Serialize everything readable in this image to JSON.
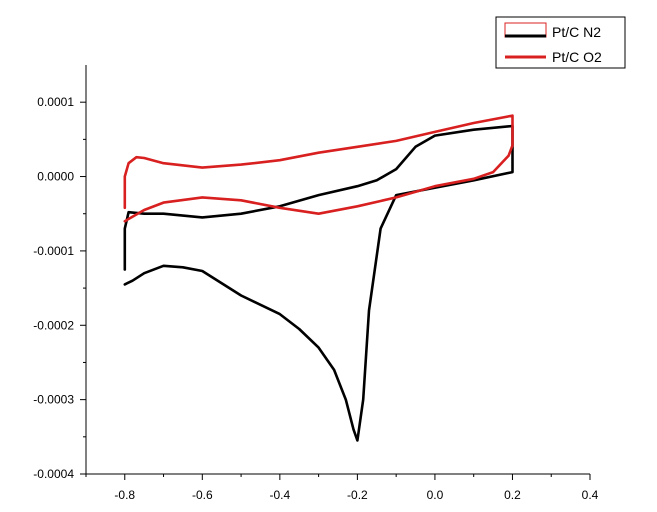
{
  "chart_data": {
    "type": "line",
    "title": "",
    "xlabel": "",
    "ylabel": "",
    "xlim": [
      -0.9,
      0.4
    ],
    "ylim": [
      -0.0004,
      0.00015
    ],
    "x_ticks": [
      -0.8,
      -0.6,
      -0.4,
      -0.2,
      0.0,
      0.2,
      0.4
    ],
    "x_tick_labels": [
      "-0.8",
      "-0.6",
      "-0.4",
      "-0.2",
      "0.0",
      "0.2",
      "0.4"
    ],
    "y_ticks": [
      -0.0004,
      -0.0003,
      -0.0002,
      -0.0001,
      0.0,
      0.0001
    ],
    "y_tick_labels": [
      "-0.0004",
      "-0.0003",
      "-0.0002",
      "-0.0001",
      "0.0000",
      "0.0001"
    ],
    "grid": false,
    "legend": {
      "placement": "top-right",
      "entries": [
        "Pt/C N2",
        "Pt/C O2"
      ]
    },
    "series": [
      {
        "name": "Pt/C N2",
        "color": "#000000",
        "x": [
          -0.8,
          -0.8,
          -0.79,
          -0.75,
          -0.7,
          -0.6,
          -0.5,
          -0.4,
          -0.3,
          -0.2,
          -0.15,
          -0.1,
          -0.05,
          0.0,
          0.1,
          0.2,
          0.2,
          0.1,
          0.0,
          -0.1,
          -0.14,
          -0.17,
          -0.185,
          -0.2,
          -0.21,
          -0.23,
          -0.26,
          -0.3,
          -0.35,
          -0.4,
          -0.5,
          -0.6,
          -0.65,
          -0.7,
          -0.75,
          -0.78,
          -0.8
        ],
        "y": [
          -0.000125,
          -7e-05,
          -4.8e-05,
          -5e-05,
          -5e-05,
          -5.5e-05,
          -5e-05,
          -4e-05,
          -2.5e-05,
          -1.3e-05,
          -5e-06,
          1e-05,
          4e-05,
          5.5e-05,
          6.3e-05,
          6.8e-05,
          6e-06,
          -5e-06,
          -1.5e-05,
          -2.5e-05,
          -7e-05,
          -0.00018,
          -0.0003,
          -0.000355,
          -0.00034,
          -0.0003,
          -0.00026,
          -0.00023,
          -0.000205,
          -0.000185,
          -0.00016,
          -0.000127,
          -0.000122,
          -0.00012,
          -0.00013,
          -0.00014,
          -0.000145
        ]
      },
      {
        "name": "Pt/C O2",
        "color": "#d92020",
        "x": [
          -0.8,
          -0.8,
          -0.79,
          -0.77,
          -0.75,
          -0.7,
          -0.6,
          -0.5,
          -0.4,
          -0.3,
          -0.2,
          -0.1,
          0.0,
          0.1,
          0.2,
          0.2,
          0.19,
          0.15,
          0.1,
          0.0,
          -0.1,
          -0.2,
          -0.3,
          -0.4,
          -0.5,
          -0.6,
          -0.7,
          -0.75,
          -0.8
        ],
        "y": [
          -4.2e-05,
          0.0,
          1.8e-05,
          2.6e-05,
          2.5e-05,
          1.8e-05,
          1.2e-05,
          1.6e-05,
          2.2e-05,
          3.2e-05,
          4e-05,
          4.8e-05,
          6e-05,
          7.2e-05,
          8.2e-05,
          4.2e-05,
          2.8e-05,
          6e-06,
          -3e-06,
          -1.3e-05,
          -2.8e-05,
          -4e-05,
          -5e-05,
          -4.2e-05,
          -3.2e-05,
          -2.8e-05,
          -3.5e-05,
          -4.5e-05,
          -6e-05
        ]
      }
    ]
  }
}
